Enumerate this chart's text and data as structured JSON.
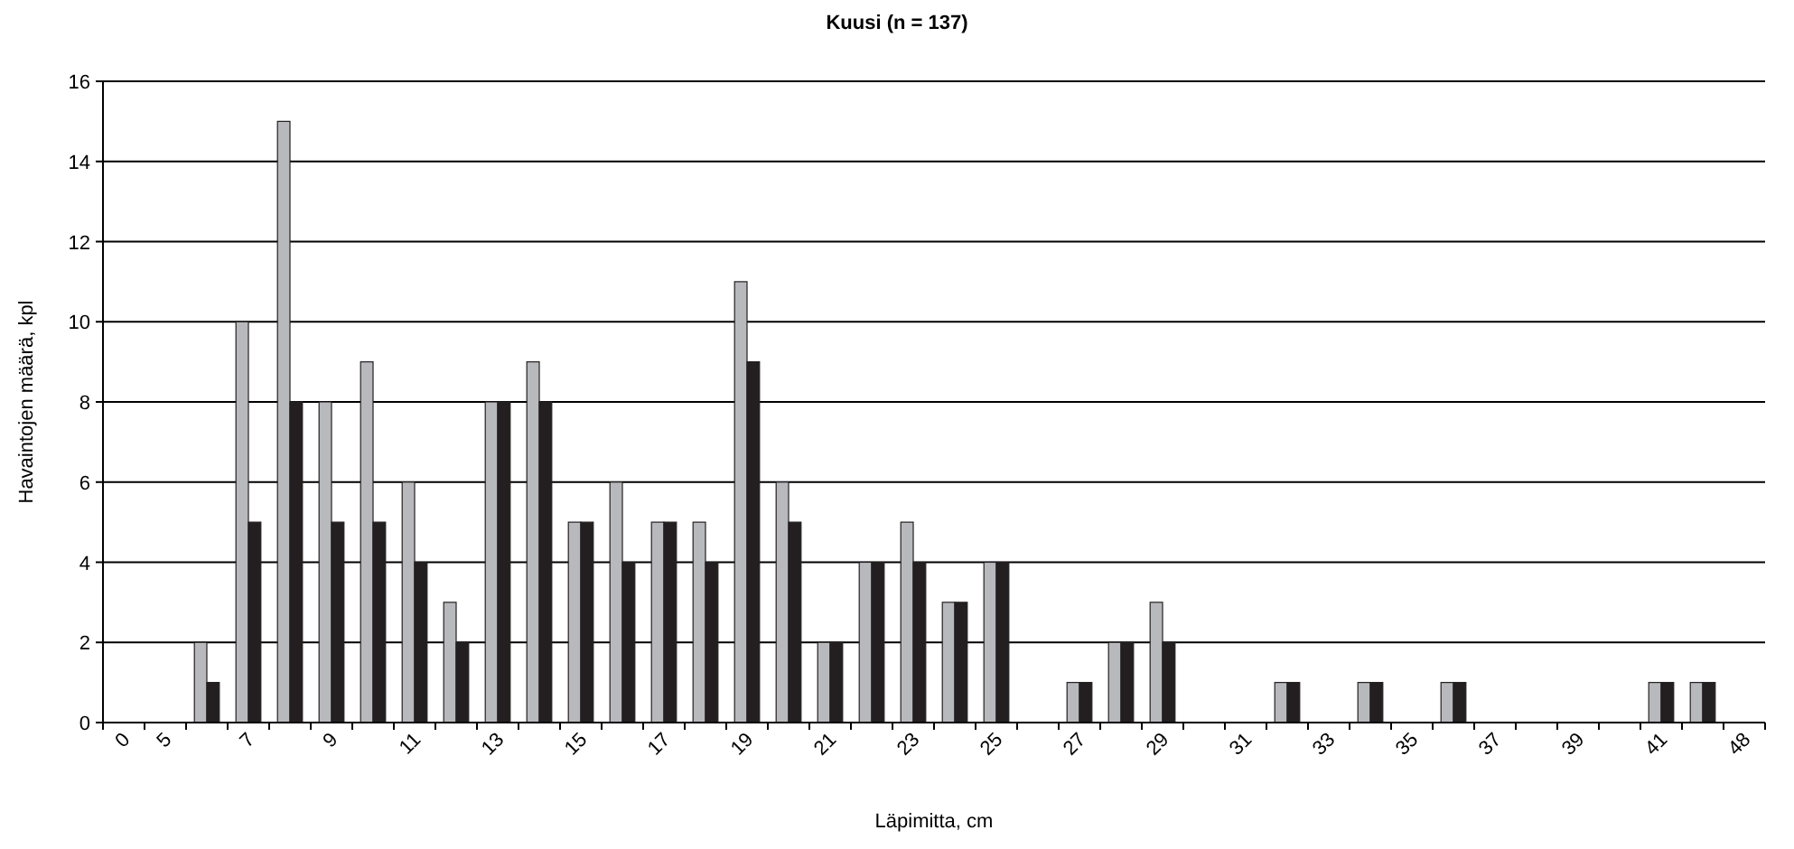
{
  "chart_data": {
    "type": "bar",
    "title": "Kuusi (n = 137)",
    "xlabel": "Läpimitta, cm",
    "ylabel": "Havaintojen määrä, kpl",
    "categories": [
      "0",
      "5",
      null,
      "7",
      null,
      "9",
      null,
      "11",
      null,
      "13",
      null,
      "15",
      null,
      "17",
      null,
      "19",
      null,
      "21",
      null,
      "23",
      null,
      "25",
      null,
      "27",
      null,
      "29",
      null,
      "31",
      null,
      "33",
      null,
      "35",
      null,
      "37",
      null,
      "39",
      null,
      "41",
      null,
      "48"
    ],
    "series": [
      {
        "color": "#b8b9bd",
        "values": [
          0,
          0,
          2,
          10,
          15,
          8,
          9,
          6,
          3,
          8,
          9,
          5,
          6,
          5,
          5,
          11,
          6,
          2,
          4,
          5,
          3,
          4,
          0,
          1,
          2,
          3,
          0,
          0,
          1,
          0,
          1,
          0,
          1,
          0,
          0,
          0,
          0,
          1,
          1,
          0
        ]
      },
      {
        "color": "#231f20",
        "values": [
          0,
          0,
          1,
          5,
          8,
          5,
          5,
          4,
          2,
          8,
          8,
          5,
          4,
          5,
          4,
          9,
          5,
          2,
          4,
          4,
          3,
          4,
          0,
          1,
          2,
          2,
          0,
          0,
          1,
          0,
          1,
          0,
          1,
          0,
          0,
          0,
          0,
          1,
          1,
          0
        ]
      }
    ],
    "ylim": [
      0,
      16
    ],
    "yticks": [
      0,
      2,
      4,
      6,
      8,
      10,
      12,
      14,
      16
    ],
    "grid": "y"
  }
}
